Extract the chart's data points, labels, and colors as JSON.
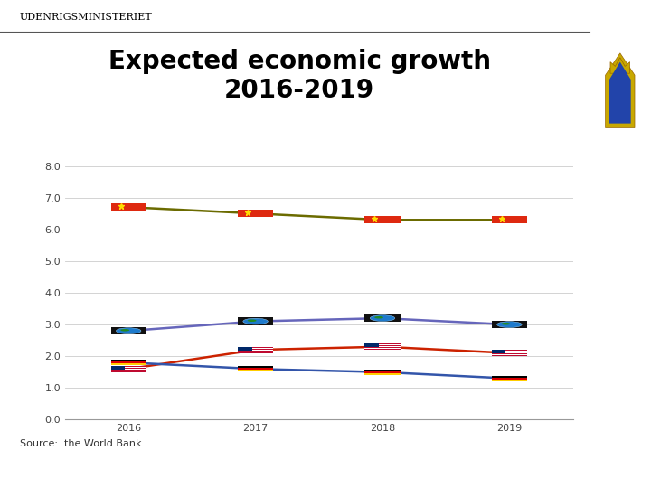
{
  "title_line1": "Expected economic growth",
  "title_line2": "2016-2019",
  "source": "Source:  the World Bank",
  "years": [
    2016,
    2017,
    2018,
    2019
  ],
  "series": {
    "China": {
      "values": [
        6.7,
        6.5,
        6.3,
        6.3
      ],
      "color": "#6B6B00",
      "linewidth": 1.8
    },
    "World": {
      "values": [
        2.8,
        3.1,
        3.2,
        3.0
      ],
      "color": "#6666BB",
      "linewidth": 1.8
    },
    "USA": {
      "values": [
        1.6,
        2.2,
        2.3,
        2.1
      ],
      "color": "#CC2200",
      "linewidth": 1.8
    },
    "Germany": {
      "values": [
        1.8,
        1.6,
        1.5,
        1.3
      ],
      "color": "#3355AA",
      "linewidth": 1.8
    }
  },
  "ylim": [
    0.0,
    8.0
  ],
  "yticks": [
    0.0,
    1.0,
    2.0,
    3.0,
    4.0,
    5.0,
    6.0,
    7.0,
    8.0
  ],
  "ytick_labels": [
    "0.0",
    "1.0",
    "2.0",
    "3.0",
    "4.0",
    "5.0",
    "6.0",
    "7.0",
    "8.0"
  ],
  "background_color": "#ffffff",
  "grid_color": "#cccccc",
  "title_fontsize": 20,
  "tick_fontsize": 8,
  "source_fontsize": 8,
  "header_text": "Udenrigsministeriet",
  "header_fontsize": 8,
  "red_bar_color": "#CC0000"
}
